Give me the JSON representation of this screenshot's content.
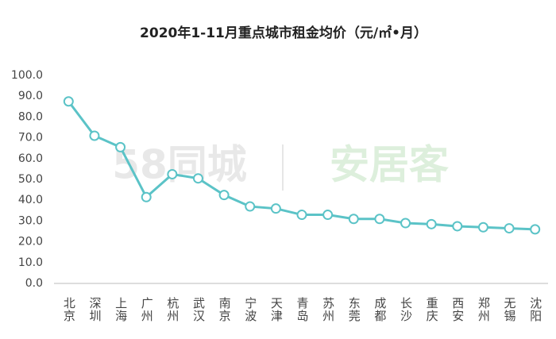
{
  "chart_data": {
    "type": "line",
    "title": "2020年1-11月重点城市租金均价（元/㎡•月）",
    "watermark": [
      "58同城",
      "安居客"
    ],
    "categories": [
      "北京",
      "深圳",
      "上海",
      "广州",
      "杭州",
      "武汉",
      "南京",
      "宁波",
      "天津",
      "青岛",
      "苏州",
      "东莞",
      "成都",
      "长沙",
      "重庆",
      "西安",
      "郑州",
      "无锡",
      "沈阳"
    ],
    "series": [
      {
        "name": "租金均价",
        "color": "#5bc3c7",
        "values": [
          87.5,
          71,
          65.5,
          41.5,
          52.5,
          50.5,
          42.5,
          37,
          36,
          33,
          33,
          31,
          31,
          29,
          28.5,
          27.5,
          27,
          26.5,
          26
        ]
      }
    ],
    "ylim": [
      0,
      100
    ],
    "yticks": [
      {
        "value": 0,
        "label": "0.0"
      },
      {
        "value": 10,
        "label": "10.0"
      },
      {
        "value": 20,
        "label": "20.0"
      },
      {
        "value": 30,
        "label": "30.0"
      },
      {
        "value": 40,
        "label": "40.0"
      },
      {
        "value": 50,
        "label": "50.0"
      },
      {
        "value": 60,
        "label": "60.0"
      },
      {
        "value": 70,
        "label": "70.0"
      },
      {
        "value": 80,
        "label": "80.0"
      },
      {
        "value": 90,
        "label": "90.0"
      },
      {
        "value": 100,
        "label": "100.0"
      }
    ],
    "grid": false
  }
}
